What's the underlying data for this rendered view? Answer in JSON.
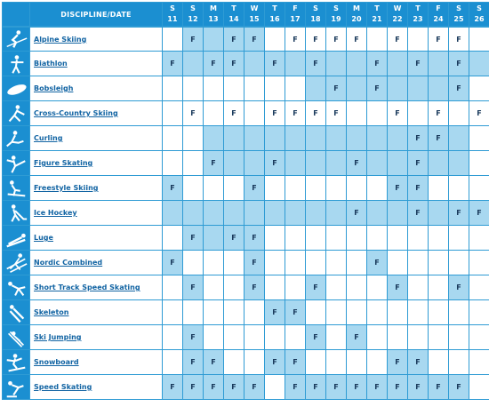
{
  "header": {
    "title": "DISCIPLINE/DATE",
    "weekdays": [
      "S",
      "S",
      "M",
      "T",
      "W",
      "T",
      "F",
      "S",
      "S",
      "M",
      "T",
      "W",
      "T",
      "F",
      "S",
      "S"
    ],
    "dates": [
      "11",
      "12",
      "13",
      "14",
      "15",
      "16",
      "17",
      "18",
      "19",
      "20",
      "21",
      "22",
      "23",
      "24",
      "25",
      "26"
    ]
  },
  "rows": [
    {
      "name": "Alpine Skiing",
      "icon": "alpine-skier-icon",
      "cells": [
        "",
        "F",
        "",
        "F",
        "F",
        "",
        "F",
        "F",
        "F",
        "F",
        "",
        "F",
        "",
        "F",
        "F",
        ""
      ]
    },
    {
      "name": "Biathlon",
      "icon": "biathlete-icon",
      "cells": [
        "F",
        "",
        "F",
        "F",
        "",
        "F",
        "",
        "F",
        "",
        "",
        "F",
        "",
        "F",
        "",
        "F",
        ""
      ]
    },
    {
      "name": "Bobsleigh",
      "icon": "bobsleigh-icon",
      "cells": [
        "",
        "",
        "",
        "",
        "",
        "",
        "",
        "",
        "F",
        "",
        "F",
        "",
        "",
        "",
        "F",
        ""
      ]
    },
    {
      "name": "Cross-Country Skiing",
      "icon": "cross-country-skier-icon",
      "cells": [
        "",
        "F",
        "",
        "F",
        "",
        "F",
        "F",
        "F",
        "F",
        "",
        "",
        "F",
        "",
        "F",
        "",
        "F"
      ]
    },
    {
      "name": "Curling",
      "icon": "curling-icon",
      "cells": [
        "",
        "",
        "",
        "",
        "",
        "",
        "",
        "",
        "",
        "",
        "",
        "",
        "F",
        "F",
        "",
        ""
      ]
    },
    {
      "name": "Figure Skating",
      "icon": "figure-skater-icon",
      "cells": [
        "",
        "",
        "F",
        "",
        "",
        "F",
        "",
        "",
        "",
        "F",
        "",
        "",
        "F",
        "",
        "",
        ""
      ]
    },
    {
      "name": "Freestyle Skiing",
      "icon": "freestyle-skier-icon",
      "cells": [
        "F",
        "",
        "",
        "",
        "F",
        "",
        "",
        "",
        "",
        "",
        "",
        "F",
        "F",
        "",
        "",
        ""
      ]
    },
    {
      "name": "Ice Hockey",
      "icon": "ice-hockey-icon",
      "cells": [
        "",
        "",
        "",
        "",
        "",
        "",
        "",
        "",
        "",
        "F",
        "",
        "",
        "F",
        "",
        "F",
        "F"
      ]
    },
    {
      "name": "Luge",
      "icon": "luge-icon",
      "cells": [
        "",
        "F",
        "",
        "F",
        "F",
        "",
        "",
        "",
        "",
        "",
        "",
        "",
        "",
        "",
        "",
        ""
      ]
    },
    {
      "name": "Nordic Combined",
      "icon": "nordic-combined-icon",
      "cells": [
        "F",
        "",
        "",
        "",
        "F",
        "",
        "",
        "",
        "",
        "",
        "F",
        "",
        "",
        "",
        "",
        ""
      ]
    },
    {
      "name": "Short Track Speed Skating",
      "icon": "short-track-skater-icon",
      "cells": [
        "",
        "F",
        "",
        "",
        "F",
        "",
        "",
        "F",
        "",
        "",
        "",
        "F",
        "",
        "",
        "F",
        ""
      ]
    },
    {
      "name": "Skeleton",
      "icon": "skeleton-icon",
      "cells": [
        "",
        "",
        "",
        "",
        "",
        "F",
        "F",
        "",
        "",
        "",
        "",
        "",
        "",
        "",
        "",
        ""
      ]
    },
    {
      "name": "Ski Jumping",
      "icon": "ski-jumper-icon",
      "cells": [
        "",
        "F",
        "",
        "",
        "",
        "",
        "",
        "F",
        "",
        "F",
        "",
        "",
        "",
        "",
        "",
        ""
      ]
    },
    {
      "name": "Snowboard",
      "icon": "snowboarder-icon",
      "cells": [
        "",
        "F",
        "F",
        "",
        "",
        "F",
        "F",
        "",
        "",
        "",
        "",
        "F",
        "F",
        "",
        "",
        ""
      ]
    },
    {
      "name": "Speed Skating",
      "icon": "speed-skater-icon",
      "cells": [
        "F",
        "F",
        "F",
        "F",
        "F",
        "",
        "F",
        "F",
        "F",
        "F",
        "F",
        "F",
        "F",
        "F",
        "F",
        ""
      ]
    }
  ],
  "highlight_days": [
    [
      0,
      1,
      1,
      1,
      1,
      0,
      0,
      0,
      0,
      0,
      0,
      0,
      0,
      0,
      0,
      0
    ],
    [
      1,
      1,
      1,
      1,
      1,
      1,
      1,
      1,
      1,
      1,
      1,
      1,
      1,
      1,
      1,
      1
    ],
    [
      0,
      0,
      0,
      0,
      0,
      0,
      0,
      1,
      1,
      1,
      1,
      1,
      1,
      1,
      1,
      0
    ],
    [
      0,
      0,
      0,
      0,
      0,
      0,
      0,
      0,
      0,
      0,
      0,
      0,
      0,
      0,
      0,
      0
    ],
    [
      0,
      0,
      1,
      1,
      1,
      1,
      1,
      1,
      1,
      1,
      1,
      1,
      1,
      1,
      1,
      0
    ],
    [
      0,
      0,
      1,
      1,
      1,
      1,
      1,
      1,
      1,
      1,
      1,
      1,
      1,
      1,
      1,
      0
    ],
    [
      1,
      0,
      0,
      0,
      1,
      0,
      0,
      0,
      0,
      0,
      0,
      1,
      1,
      0,
      0,
      0
    ],
    [
      1,
      1,
      1,
      1,
      1,
      1,
      1,
      1,
      1,
      1,
      1,
      1,
      1,
      1,
      1,
      1
    ],
    [
      0,
      1,
      1,
      1,
      1,
      0,
      0,
      0,
      0,
      0,
      0,
      0,
      0,
      0,
      0,
      0
    ],
    [
      1,
      0,
      0,
      0,
      1,
      0,
      0,
      0,
      0,
      0,
      1,
      0,
      0,
      0,
      0,
      0
    ],
    [
      0,
      1,
      0,
      0,
      1,
      0,
      0,
      1,
      0,
      0,
      0,
      1,
      0,
      0,
      1,
      0
    ],
    [
      0,
      0,
      0,
      0,
      0,
      1,
      1,
      0,
      0,
      0,
      0,
      0,
      0,
      0,
      0,
      0
    ],
    [
      0,
      1,
      0,
      0,
      0,
      0,
      0,
      1,
      0,
      1,
      0,
      0,
      0,
      0,
      0,
      0
    ],
    [
      0,
      1,
      1,
      0,
      0,
      1,
      1,
      0,
      0,
      0,
      0,
      1,
      1,
      0,
      0,
      0
    ],
    [
      1,
      1,
      1,
      1,
      1,
      0,
      1,
      1,
      1,
      1,
      1,
      1,
      1,
      1,
      1,
      0
    ]
  ],
  "colors": {
    "header_bg": "#1b8fd1",
    "highlight": "#a8d8f0",
    "grid": "#2e9bd4",
    "link": "#1264a3"
  }
}
